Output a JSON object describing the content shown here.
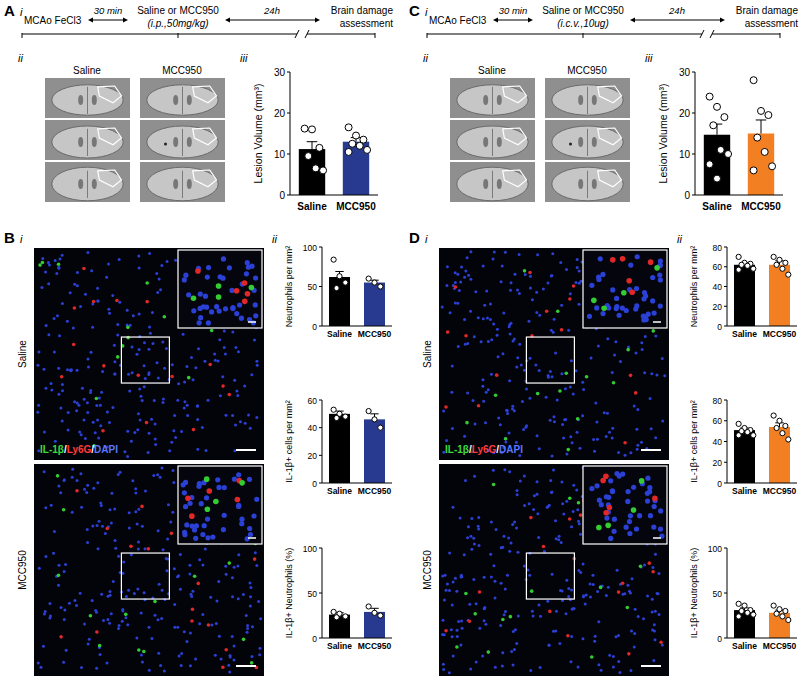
{
  "chart_data": [
    {
      "type": "bar",
      "y_label": "Lesion Volume (mm³)",
      "categories": [
        "Saline",
        "MCC950"
      ],
      "values": [
        11.2,
        13.0
      ],
      "errors": [
        1.8,
        1.0
      ],
      "points": [
        [
          16.2,
          16.0,
          11.5,
          9.5,
          6.5,
          6.0
        ],
        [
          16.5,
          14.5,
          13.5,
          12.5,
          12.0,
          11.0,
          10.5
        ]
      ],
      "colors": [
        "#000000",
        "#283a8f"
      ],
      "ylim": [
        0,
        30
      ],
      "yticks": [
        0,
        10,
        20,
        30
      ]
    },
    {
      "type": "bar",
      "y_label": "Neutrophils per mm²",
      "categories": [
        "Saline",
        "MCC950"
      ],
      "values": [
        62,
        55
      ],
      "errors": [
        7,
        3
      ],
      "points": [
        [
          84,
          63,
          55,
          48
        ],
        [
          60,
          55,
          50
        ]
      ],
      "colors": [
        "#000000",
        "#283a8f"
      ],
      "ylim": [
        0,
        100
      ],
      "yticks": [
        0,
        50,
        100
      ]
    },
    {
      "type": "bar",
      "y_label": "IL-1β+ cells per mm²",
      "categories": [
        "Saline",
        "MCC950"
      ],
      "values": [
        50,
        46
      ],
      "errors": [
        2,
        4
      ],
      "points": [
        [
          53,
          50,
          48,
          47
        ],
        [
          52,
          46,
          40
        ]
      ],
      "colors": [
        "#000000",
        "#283a8f"
      ],
      "ylim": [
        0,
        60
      ],
      "yticks": [
        0,
        20,
        40,
        60
      ]
    },
    {
      "type": "bar",
      "y_label": "IL-1β+ Neutrophils (%)",
      "categories": [
        "Saline",
        "MCC950"
      ],
      "values": [
        26,
        29
      ],
      "errors": [
        2,
        4
      ],
      "points": [
        [
          29,
          27,
          24,
          23
        ],
        [
          35,
          28,
          25
        ]
      ],
      "colors": [
        "#000000",
        "#283a8f"
      ],
      "ylim": [
        0,
        100
      ],
      "yticks": [
        0,
        50,
        100
      ]
    },
    {
      "type": "bar",
      "y_label": "Lesion Volume (mm³)",
      "categories": [
        "Saline",
        "MCC950"
      ],
      "values": [
        14.7,
        15.0
      ],
      "errors": [
        2.6,
        3.3
      ],
      "points": [
        [
          24,
          21.5,
          19,
          17,
          11,
          10,
          7.5,
          4
        ],
        [
          28,
          20.5,
          19.5,
          14,
          10.5,
          7,
          6
        ]
      ],
      "colors": [
        "#000000",
        "#f28023"
      ],
      "ylim": [
        0,
        30
      ],
      "yticks": [
        0,
        10,
        20,
        30
      ]
    },
    {
      "type": "bar",
      "y_label": "Neutrophils per mm²",
      "categories": [
        "Saline",
        "MCC950"
      ],
      "values": [
        62,
        62
      ],
      "errors": [
        2,
        4
      ],
      "points": [
        [
          70,
          64,
          63,
          62,
          61,
          58,
          57
        ],
        [
          70,
          67,
          64,
          62,
          58,
          52
        ]
      ],
      "colors": [
        "#000000",
        "#f28023"
      ],
      "ylim": [
        0,
        80
      ],
      "yticks": [
        0,
        20,
        40,
        60,
        80
      ]
    },
    {
      "type": "bar",
      "y_label": "IL-1β+ cells per mm²",
      "categories": [
        "Saline",
        "MCC950"
      ],
      "values": [
        51,
        54
      ],
      "errors": [
        2,
        4
      ],
      "points": [
        [
          57,
          53,
          51,
          50,
          49,
          46,
          46
        ],
        [
          65,
          60,
          55,
          53,
          48,
          42
        ]
      ],
      "colors": [
        "#000000",
        "#f28023"
      ],
      "ylim": [
        0,
        80
      ],
      "yticks": [
        0,
        20,
        40,
        60,
        80
      ]
    },
    {
      "type": "bar",
      "y_label": "IL-1β+ Neutrophils (%)",
      "categories": [
        "Saline",
        "MCC950"
      ],
      "values": [
        31,
        28
      ],
      "errors": [
        2.5,
        3
      ],
      "points": [
        [
          38,
          36,
          31,
          30,
          28,
          26,
          24
        ],
        [
          36,
          32,
          30,
          27,
          24,
          20
        ]
      ],
      "colors": [
        "#000000",
        "#f28023"
      ],
      "ylim": [
        0,
        100
      ],
      "yticks": [
        0,
        50,
        100
      ]
    }
  ],
  "panels": [
    {
      "letter": "A",
      "parts": [
        "i",
        "ii",
        "iii"
      ],
      "timeline": {
        "start": "MCAo FeCl3",
        "delay": "30 min",
        "treatment": "Saline or MCC950",
        "route": "(i.p.,50mg/kg)",
        "interval": "24h",
        "end": [
          "Brain damage",
          "assessment"
        ]
      },
      "image_labels": [
        "Saline",
        "MCC950"
      ]
    },
    {
      "letter": "B",
      "parts": [
        "i",
        "ii"
      ],
      "image_labels": [
        "Saline",
        "MCC950"
      ],
      "stain": [
        {
          "text": "IL-1β",
          "color": "#3ddc3d"
        },
        {
          "text": "Ly6G",
          "color": "#ff3b3b"
        },
        {
          "text": "DAPI",
          "color": "#5a78ff"
        }
      ],
      "stain_separator": "/"
    },
    {
      "letter": "C",
      "parts": [
        "i",
        "ii",
        "iii"
      ],
      "timeline": {
        "start": "MCAo FeCl3",
        "delay": "30 min",
        "treatment": "Saline or MCC950",
        "route": "(i.c.v.,10ug)",
        "interval": "24h",
        "end": [
          "Brain damage",
          "assessment"
        ]
      },
      "image_labels": [
        "Saline",
        "MCC950"
      ]
    },
    {
      "letter": "D",
      "parts": [
        "i",
        "ii"
      ],
      "image_labels": [
        "Saline",
        "MCC950"
      ],
      "stain": [
        {
          "text": "IL-1β",
          "color": "#3ddc3d"
        },
        {
          "text": "Ly6G",
          "color": "#ff3b3b"
        },
        {
          "text": "DAPI",
          "color": "#5a78ff"
        }
      ],
      "stain_separator": "/"
    }
  ]
}
